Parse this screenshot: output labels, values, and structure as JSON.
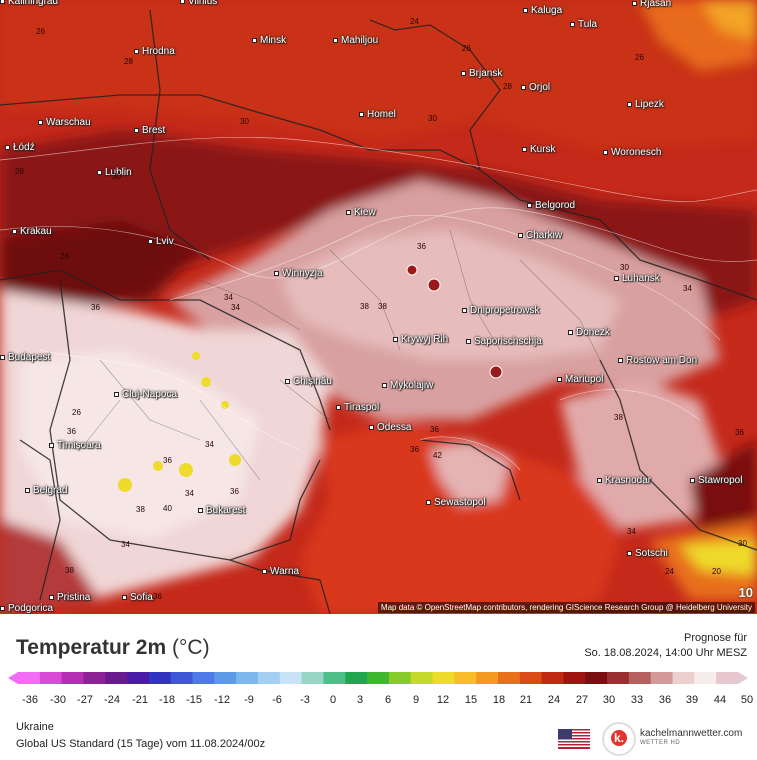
{
  "map": {
    "attribution": "Map data © OpenStreetMap contributors, rendering GIScience Research Group @ Heidelberg University",
    "step_label": "10",
    "cities": [
      "Kaliningrad",
      "Vilnius",
      "Kaluga",
      "Rjasan",
      "Tula",
      "Minsk",
      "Mahiljou",
      "Hrodna",
      "Brjansk",
      "Orjol",
      "Lipezk",
      "Homel",
      "Warschau",
      "Brest",
      "Łódź",
      "Kursk",
      "Woronesch",
      "Lublin",
      "Belgorod",
      "Kiew",
      "Krakau",
      "Lviv",
      "Charkiw",
      "Winnyzja",
      "Luhansk",
      "Dnipropetrowsk",
      "Donezk",
      "Krywyj Rih",
      "Saporischschja",
      "Rostow am Don",
      "Cluj-Napoca",
      "Chișinău",
      "Mykolajiw",
      "Mariupol",
      "Tiraspol",
      "Odessa",
      "Timișoara",
      "Belgrad",
      "Krasnodar",
      "Stawropol",
      "Sewastopol",
      "Bukarest",
      "Sotschi",
      "Warna",
      "Pristina",
      "Sofia",
      "Podgorica",
      "Budapest"
    ],
    "isotherm_labels": [
      "26",
      "24",
      "26",
      "26",
      "28",
      "28",
      "30",
      "30",
      "28",
      "30",
      "26",
      "30",
      "36",
      "34",
      "34",
      "36",
      "38",
      "38",
      "34",
      "36",
      "36",
      "36",
      "34",
      "36",
      "38",
      "36",
      "42",
      "40",
      "34",
      "38",
      "38",
      "34",
      "36",
      "26",
      "36",
      "24",
      "20",
      "34",
      "30"
    ]
  },
  "legend": {
    "title": "Temperatur 2m",
    "unit": "(°C)",
    "forecast_label": "Prognose für",
    "forecast_date": "So. 18.08.2024, 14:00 Uhr MESZ",
    "ticks": [
      "-36",
      "-30",
      "-27",
      "-24",
      "-21",
      "-18",
      "-15",
      "-12",
      "-9",
      "-6",
      "-3",
      "0",
      "3",
      "6",
      "9",
      "12",
      "15",
      "18",
      "21",
      "24",
      "27",
      "30",
      "33",
      "36",
      "39",
      "44",
      "50"
    ],
    "colors": [
      "#f46cf5",
      "#d94ad6",
      "#b52fb5",
      "#8c2296",
      "#6a1a8f",
      "#4b1aa8",
      "#3333c2",
      "#3f56d8",
      "#4d7ae6",
      "#5d9be8",
      "#7cb8ee",
      "#a2d0f2",
      "#c6e4f6",
      "#97d6c4",
      "#4fbf8a",
      "#1fa64e",
      "#3fb82f",
      "#87cc2a",
      "#c5d92b",
      "#eedb2c",
      "#f8bd28",
      "#f39a21",
      "#e8701b",
      "#da4a16",
      "#c02a13",
      "#a01410",
      "#7a0d0e",
      "#9a3030",
      "#b86060",
      "#d49a9a",
      "#ecd0d0",
      "#f7ecec",
      "#e8c8d0"
    ],
    "region": "Ukraine",
    "model": "Global US Standard (15 Tage) vom  11.08.2024/00z",
    "brand": "kachelmannwetter.com",
    "brand_sub": "WETTER HD"
  }
}
